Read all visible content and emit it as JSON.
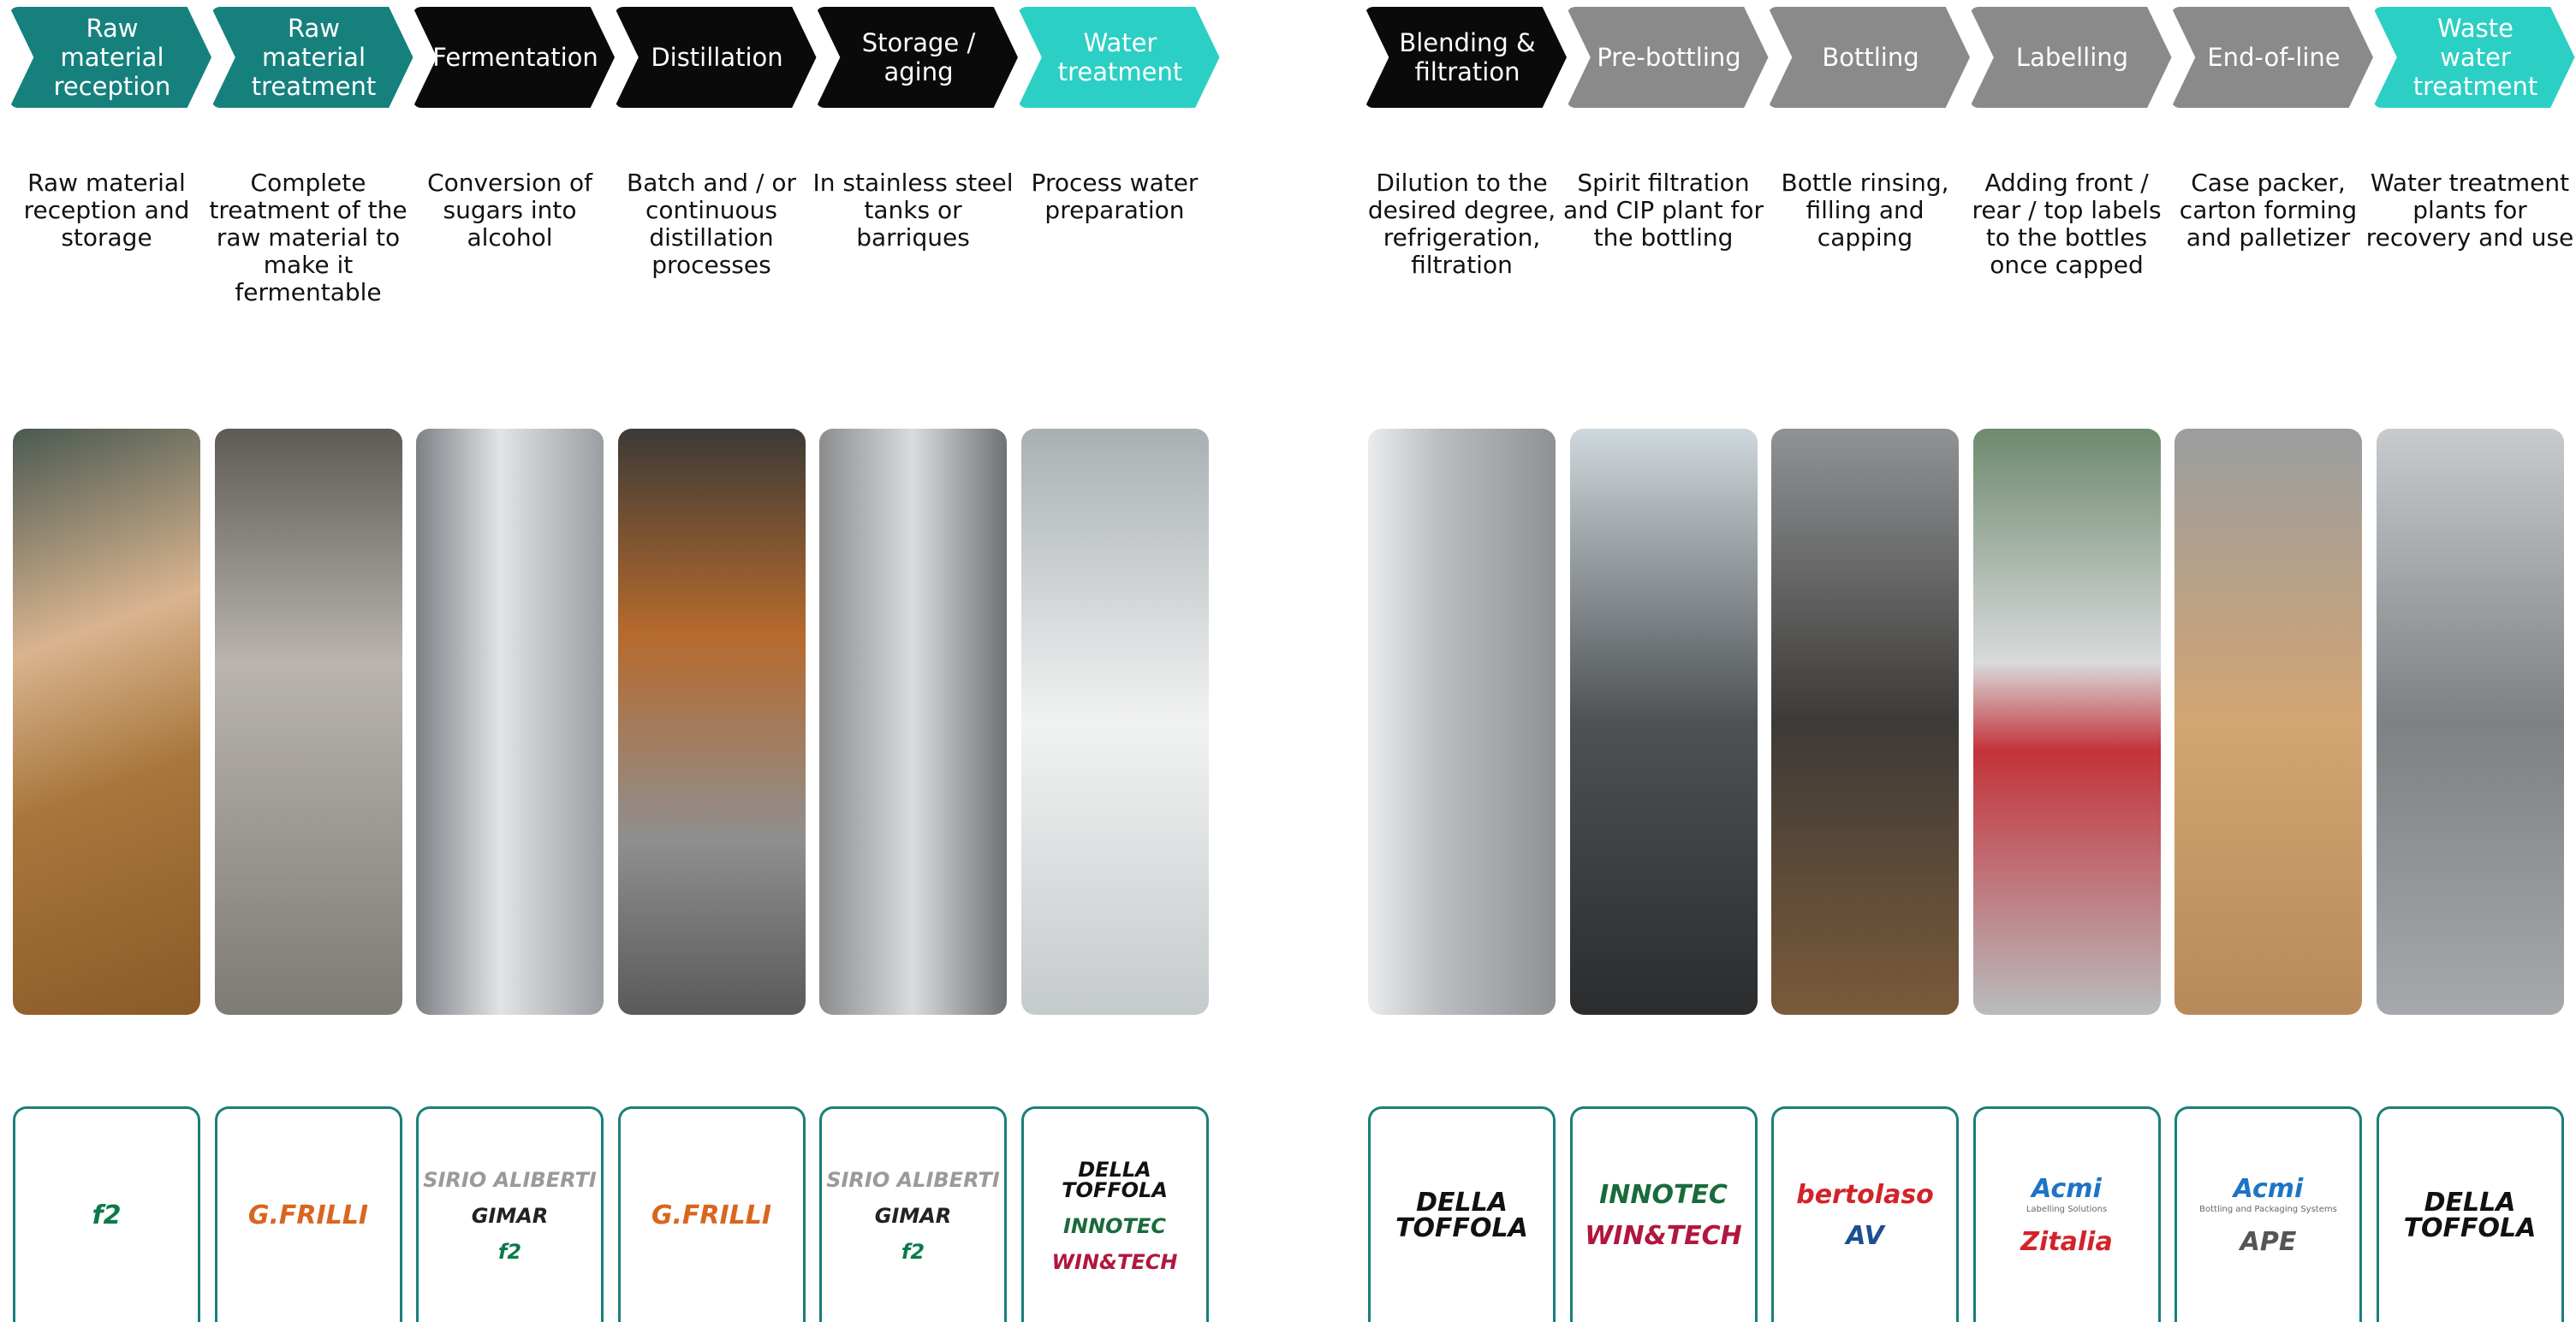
{
  "groups": [
    {
      "steps": [
        {
          "label": "Raw material reception",
          "color": "#16807d",
          "description": "Raw material reception and storage",
          "logos": [
            {
              "text": "f2",
              "color": "#0b7a4a"
            }
          ]
        },
        {
          "label": "Raw material treatment",
          "color": "#16807d",
          "description": "Complete treatment of the raw material to make it fermentable",
          "logos": [
            {
              "text": "G.FRILLI",
              "color": "#d9661f"
            }
          ]
        },
        {
          "label": "Fermentation",
          "color": "#0a0a0a",
          "description": "Conversion of sugars into alcohol",
          "logos": [
            {
              "text": "SIRIO ALIBERTI",
              "color": "#9a9a9a"
            },
            {
              "text": "GIMAR",
              "color": "#222222"
            },
            {
              "text": "f2",
              "color": "#0b7a4a"
            }
          ]
        },
        {
          "label": "Distillation",
          "color": "#0a0a0a",
          "description": "Batch and / or continuous distillation processes",
          "logos": [
            {
              "text": "G.FRILLI",
              "color": "#d9661f"
            }
          ]
        },
        {
          "label": "Storage / aging",
          "color": "#0a0a0a",
          "description": "In stainless steel tanks or barriques",
          "logos": [
            {
              "text": "SIRIO ALIBERTI",
              "color": "#9a9a9a"
            },
            {
              "text": "GIMAR",
              "color": "#222222"
            },
            {
              "text": "f2",
              "color": "#0b7a4a"
            }
          ]
        },
        {
          "label": "Water treatment",
          "color": "#2ccfc3",
          "description": "Process water preparation",
          "logos": [
            {
              "text": "DELLA TOFFOLA",
              "color": "#111111"
            },
            {
              "text": "INNOTEC",
              "color": "#1a6b3c"
            },
            {
              "text": "WIN&TECH",
              "color": "#b0173e"
            }
          ]
        }
      ]
    },
    {
      "steps": [
        {
          "label": "Blending & filtration",
          "color": "#0a0a0a",
          "description": "Dilution to the desired degree, refrigeration, filtration",
          "logos": [
            {
              "text": "DELLA TOFFOLA",
              "color": "#111111"
            }
          ]
        },
        {
          "label": "Pre-bottling",
          "color": "#8a8a8a",
          "description": "Spirit filtration and CIP plant for the bottling",
          "logos": [
            {
              "text": "INNOTEC",
              "color": "#1a6b3c"
            },
            {
              "text": "WIN&TECH",
              "color": "#b0173e"
            }
          ]
        },
        {
          "label": "Bottling",
          "color": "#8a8a8a",
          "description": "Bottle rinsing, filling and capping",
          "logos": [
            {
              "text": "bertolaso",
              "color": "#d2232a"
            },
            {
              "text": "AV",
              "color": "#1d4f91"
            }
          ]
        },
        {
          "label": "Labelling",
          "color": "#8a8a8a",
          "description": "Adding front / rear / top labels to the bottles once capped",
          "logos": [
            {
              "text": "Acmi",
              "color": "#1e74c6",
              "tagline": "Labelling Solutions"
            },
            {
              "text": "Zitalia",
              "color": "#d2232a"
            }
          ]
        },
        {
          "label": "End-of-line",
          "color": "#8a8a8a",
          "description": "Case packer, carton forming and palletizer",
          "logos": [
            {
              "text": "Acmi",
              "color": "#1e74c6",
              "tagline": "Bottling and Packaging Systems"
            },
            {
              "text": "APE",
              "color": "#555555"
            }
          ]
        },
        {
          "label": "Waste water treatment",
          "color": "#2ccfc3",
          "description": "Water treatment plants for recovery and use",
          "logos": [
            {
              "text": "DELLA TOFFOLA",
              "color": "#111111"
            }
          ]
        }
      ]
    }
  ]
}
